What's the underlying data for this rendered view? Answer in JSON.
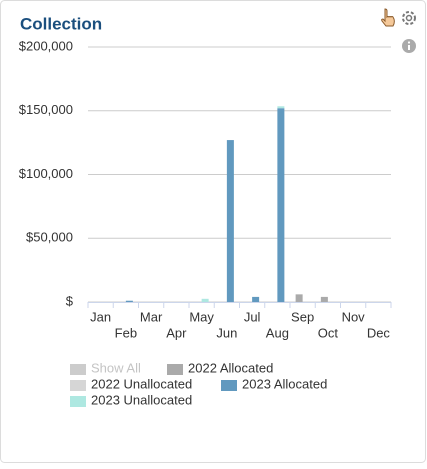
{
  "chart_data": {
    "type": "bar",
    "title": "Collection",
    "categories": [
      "Jan",
      "Feb",
      "Mar",
      "Apr",
      "May",
      "Jun",
      "Jul",
      "Aug",
      "Sep",
      "Oct",
      "Nov",
      "Dec"
    ],
    "series": [
      {
        "name": "2022 Allocated",
        "color": "#aaaaaa",
        "values": [
          0,
          0,
          0,
          0,
          0,
          0,
          0,
          0,
          6000,
          4000,
          0,
          0
        ]
      },
      {
        "name": "2022 Unallocated",
        "color": "#d6d6d6",
        "values": [
          0,
          0,
          0,
          0,
          0,
          0,
          0,
          0,
          0,
          0,
          0,
          0
        ]
      },
      {
        "name": "2023 Allocated",
        "color": "#6199bf",
        "values": [
          0,
          1000,
          0,
          0,
          0,
          127000,
          4000,
          152000,
          0,
          0,
          0,
          0
        ]
      },
      {
        "name": "2023 Unallocated",
        "color": "#aee8e1",
        "values": [
          0,
          0,
          0,
          0,
          2500,
          0,
          0,
          1500,
          0,
          0,
          0,
          0
        ]
      }
    ],
    "stacked": true,
    "ylim": [
      0,
      200000
    ],
    "yticks": [
      {
        "value": 0,
        "label": "$"
      },
      {
        "value": 50000,
        "label": "$50,000"
      },
      {
        "value": 100000,
        "label": "$100,000"
      },
      {
        "value": 150000,
        "label": "$150,000"
      },
      {
        "value": 200000,
        "label": "$200,000"
      }
    ],
    "grid": true,
    "legend": {
      "show_all": "Show All",
      "position": "bottom"
    }
  }
}
